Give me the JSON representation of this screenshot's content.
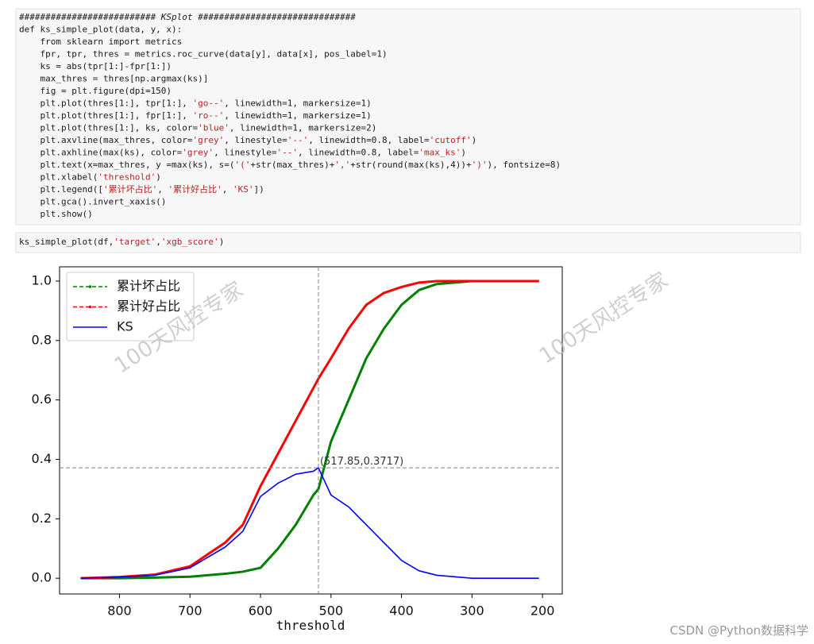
{
  "code_cells": [
    {
      "lines": [
        "########################## KSplot ##############################",
        "def ks_simple_plot(data, y, x):",
        "    from sklearn import metrics",
        "    fpr, tpr, thres = metrics.roc_curve(data[y], data[x], pos_label=1)",
        "    ks = abs(tpr[1:]-fpr[1:])",
        "    max_thres = thres[np.argmax(ks)]",
        "    fig = plt.figure(dpi=150)",
        "    plt.plot(thres[1:], tpr[1:], 'go--', linewidth=1, markersize=1)",
        "    plt.plot(thres[1:], fpr[1:], 'ro--', linewidth=1, markersize=1)",
        "    plt.plot(thres[1:], ks, color='blue', linewidth=1, markersize=2)",
        "    plt.axvline(max_thres, color='grey', linestyle='--', linewidth=0.8, label='cutoff')",
        "    plt.axhline(max(ks), color='grey', linestyle='--', linewidth=0.8, label='max_ks')",
        "    plt.text(x=max_thres, y =max(ks), s=('('+str(max_thres)+','+str(round(max(ks),4))+')'), fontsize=8)",
        "    plt.xlabel('threshold')",
        "    plt.legend(['累计坏占比', '累计好占比', 'KS'])",
        "    plt.gca().invert_xaxis()",
        "    plt.show()"
      ]
    },
    {
      "lines": [
        "ks_simple_plot(df,'target','xgb_score')"
      ]
    }
  ],
  "chart_data": {
    "type": "line",
    "x": [
      855,
      800,
      750,
      700,
      650,
      625,
      600,
      575,
      550,
      525,
      517.85,
      500,
      475,
      450,
      425,
      400,
      375,
      350,
      300,
      250,
      205
    ],
    "series": [
      {
        "name": "累计坏占比",
        "color": "#008000",
        "linestyle": "dashed",
        "values": [
          0,
          0,
          0.002,
          0.005,
          0.015,
          0.022,
          0.035,
          0.1,
          0.18,
          0.28,
          0.3,
          0.46,
          0.6,
          0.74,
          0.84,
          0.92,
          0.97,
          0.99,
          1.0,
          1.0,
          1.0
        ]
      },
      {
        "name": "累计好占比",
        "color": "#ff0000",
        "linestyle": "dashed",
        "values": [
          0,
          0.004,
          0.012,
          0.04,
          0.12,
          0.18,
          0.31,
          0.42,
          0.53,
          0.64,
          0.6717,
          0.74,
          0.84,
          0.92,
          0.96,
          0.98,
          0.995,
          1.0,
          1.0,
          1.0,
          1.0
        ]
      },
      {
        "name": "KS",
        "color": "#0000ff",
        "linestyle": "solid",
        "values": [
          0,
          0.004,
          0.01,
          0.035,
          0.105,
          0.158,
          0.275,
          0.32,
          0.35,
          0.36,
          0.3717,
          0.28,
          0.24,
          0.18,
          0.12,
          0.06,
          0.025,
          0.01,
          0.0,
          0.0,
          0.0
        ]
      }
    ],
    "xlabel": "threshold",
    "xlim": [
      885,
      172
    ],
    "xticks": [
      800,
      700,
      600,
      500,
      400,
      300,
      200
    ],
    "ylim": [
      -0.053,
      1.048
    ],
    "yticks": [
      {
        "value": 0,
        "label": "0.0"
      },
      0.2,
      0.4,
      0.6,
      0.8,
      {
        "value": 1,
        "label": "1.0"
      }
    ],
    "cutoff": 517.85,
    "max_ks": 0.3717,
    "annotation": "(517.85,0.3717)",
    "legend": "upper left"
  },
  "watermarks": [
    "100天风控专家",
    "100天风控专家"
  ],
  "footer": "CSDN @Python数据科学"
}
